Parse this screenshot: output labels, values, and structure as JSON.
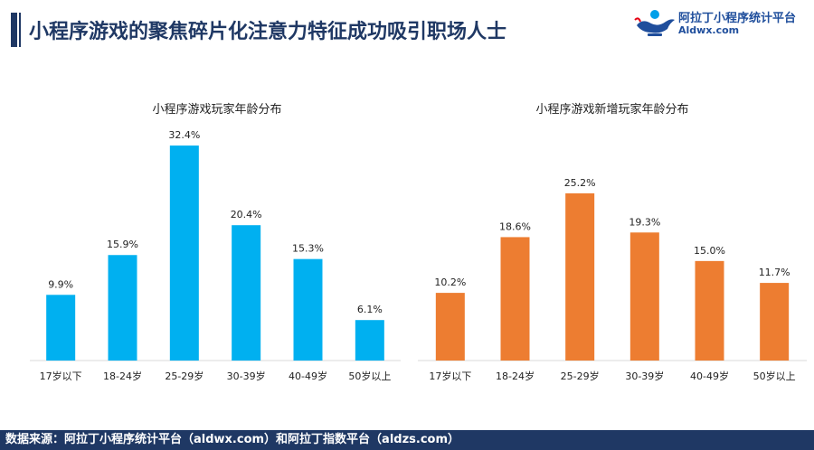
{
  "header": {
    "title": "小程序游戏的聚焦碎片化注意力特征成功吸引职场人士"
  },
  "logo": {
    "name": "阿拉丁小程序统计平台",
    "url": "Aldwx.com"
  },
  "footer": {
    "source": "数据来源：阿拉丁小程序统计平台（aldwx.com）和阿拉丁指数平台（aldzs.com）"
  },
  "colors": {
    "title": "#1f3864",
    "left_bars": "#00b0f0",
    "right_bars": "#ed7d31"
  },
  "chart_data": [
    {
      "type": "bar",
      "title": "小程序游戏玩家年龄分布",
      "categories": [
        "17岁以下",
        "18-24岁",
        "25-29岁",
        "30-39岁",
        "40-49岁",
        "50岁以上"
      ],
      "values": [
        9.9,
        15.9,
        32.4,
        20.4,
        15.3,
        6.1
      ],
      "labels": [
        "9.9%",
        "15.9%",
        "32.4%",
        "20.4%",
        "15.3%",
        "6.1%"
      ],
      "color": "#00b0f0",
      "ylim": [
        0,
        35
      ]
    },
    {
      "type": "bar",
      "title": "小程序游戏新增玩家年龄分布",
      "categories": [
        "17岁以下",
        "18-24岁",
        "25-29岁",
        "30-39岁",
        "40-49岁",
        "50岁以上"
      ],
      "values": [
        10.2,
        18.6,
        25.2,
        19.3,
        15.0,
        11.7
      ],
      "labels": [
        "10.2%",
        "18.6%",
        "25.2%",
        "19.3%",
        "15.0%",
        "11.7%"
      ],
      "color": "#ed7d31",
      "ylim": [
        0,
        35
      ]
    }
  ]
}
